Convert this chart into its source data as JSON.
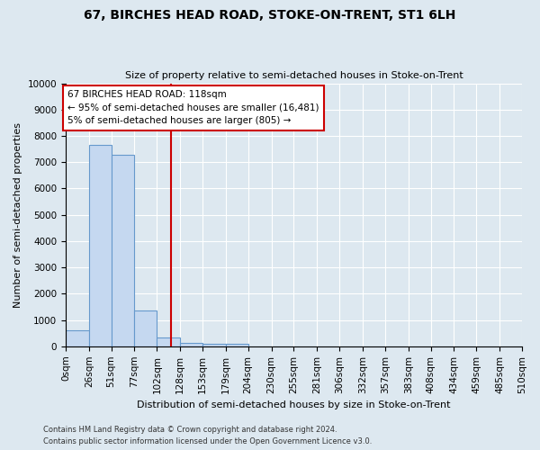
{
  "title": "67, BIRCHES HEAD ROAD, STOKE-ON-TRENT, ST1 6LH",
  "subtitle": "Size of property relative to semi-detached houses in Stoke-on-Trent",
  "xlabel": "Distribution of semi-detached houses by size in Stoke-on-Trent",
  "ylabel": "Number of semi-detached properties",
  "footer_line1": "Contains HM Land Registry data © Crown copyright and database right 2024.",
  "footer_line2": "Contains public sector information licensed under the Open Government Licence v3.0.",
  "bin_labels": [
    "0sqm",
    "26sqm",
    "51sqm",
    "77sqm",
    "102sqm",
    "128sqm",
    "153sqm",
    "179sqm",
    "204sqm",
    "230sqm",
    "255sqm",
    "281sqm",
    "306sqm",
    "332sqm",
    "357sqm",
    "383sqm",
    "408sqm",
    "434sqm",
    "459sqm",
    "485sqm",
    "510sqm"
  ],
  "bar_values": [
    600,
    7650,
    7280,
    1370,
    340,
    140,
    110,
    80,
    0,
    0,
    0,
    0,
    0,
    0,
    0,
    0,
    0,
    0,
    0,
    0
  ],
  "bar_color": "#c5d8f0",
  "bar_edge_color": "#6699cc",
  "property_line_x": 118,
  "property_line_label": "67 BIRCHES HEAD ROAD: 118sqm",
  "annotation_smaller": "← 95% of semi-detached houses are smaller (16,481)",
  "annotation_larger": "5% of semi-detached houses are larger (805) →",
  "annotation_box_color": "#ffffff",
  "annotation_box_edge": "#cc0000",
  "vline_color": "#cc0000",
  "ylim": [
    0,
    10000
  ],
  "yticks": [
    0,
    1000,
    2000,
    3000,
    4000,
    5000,
    6000,
    7000,
    8000,
    9000,
    10000
  ],
  "bin_edges": [
    0,
    26,
    51,
    77,
    102,
    128,
    153,
    179,
    204,
    230,
    255,
    281,
    306,
    332,
    357,
    383,
    408,
    434,
    459,
    485,
    510
  ],
  "background_color": "#dde8f0",
  "plot_bg_color": "#dde8f0",
  "grid_color": "#ffffff",
  "title_fontsize": 10,
  "subtitle_fontsize": 8,
  "ylabel_fontsize": 8,
  "xlabel_fontsize": 8,
  "tick_fontsize": 7.5,
  "footer_fontsize": 6
}
